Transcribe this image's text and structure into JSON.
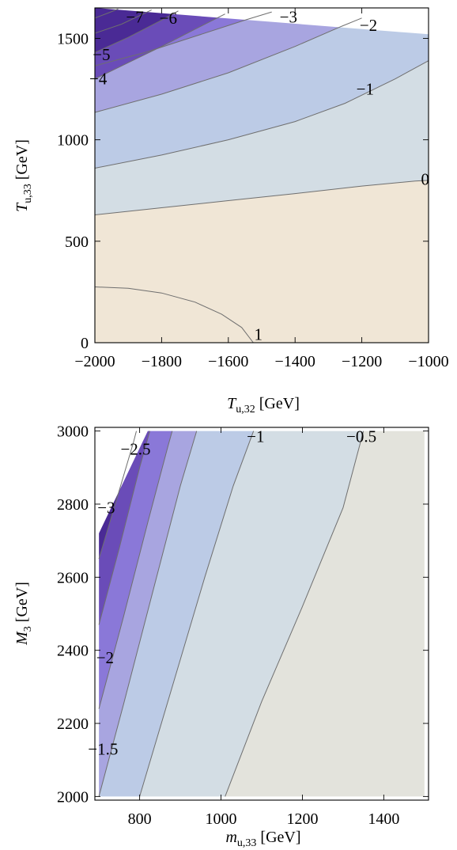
{
  "chart_data": [
    {
      "type": "contour",
      "xlabel": {
        "main": "T",
        "sub": "u,32",
        "unit": " [GeV]"
      },
      "ylabel": {
        "main": "T",
        "sub": "u,33",
        "unit": " [GeV]"
      },
      "xlim": [
        -2000,
        -1000
      ],
      "ylim": [
        0,
        1650
      ],
      "xticks": [
        -2000,
        -1800,
        -1600,
        -1400,
        -1200,
        -1000
      ],
      "xtick_labels": [
        "−2000",
        "−1800",
        "−1600",
        "−1400",
        "−1200",
        "−1000"
      ],
      "yticks": [
        0,
        500,
        1000,
        1500
      ],
      "ytick_labels": [
        "0",
        "500",
        "1000",
        "1500"
      ],
      "region_top_edge": [
        [
          -2000,
          1650
        ],
        [
          -1000,
          1520
        ]
      ],
      "contour_levels": [
        -7,
        -6,
        -5,
        -4,
        -3,
        -2,
        -1,
        0,
        1
      ],
      "contours": [
        {
          "level": 1,
          "label": "1",
          "label_at": [
            -1510,
            40
          ],
          "points": [
            [
              -2000,
              275
            ],
            [
              -1900,
              268
            ],
            [
              -1800,
              245
            ],
            [
              -1700,
              200
            ],
            [
              -1620,
              140
            ],
            [
              -1560,
              75
            ],
            [
              -1525,
              0
            ]
          ]
        },
        {
          "level": 0,
          "label": "0",
          "label_at": [
            -1010,
            805
          ],
          "points": [
            [
              -2000,
              630
            ],
            [
              -1800,
              665
            ],
            [
              -1600,
              700
            ],
            [
              -1400,
              735
            ],
            [
              -1200,
              772
            ],
            [
              -1040,
              797
            ],
            [
              -1000,
              800
            ]
          ]
        },
        {
          "level": -1,
          "label": "−1",
          "label_at": [
            -1190,
            1250
          ],
          "points": [
            [
              -2000,
              860
            ],
            [
              -1800,
              925
            ],
            [
              -1600,
              1000
            ],
            [
              -1400,
              1090
            ],
            [
              -1250,
              1180
            ],
            [
              -1100,
              1300
            ],
            [
              -1000,
              1390
            ]
          ]
        },
        {
          "level": -2,
          "label": "−2",
          "label_at": [
            -1180,
            1565
          ],
          "points": [
            [
              -2000,
              1135
            ],
            [
              -1800,
              1225
            ],
            [
              -1600,
              1330
            ],
            [
              -1400,
              1460
            ],
            [
              -1260,
              1560
            ],
            [
              -1200,
              1600
            ]
          ]
        },
        {
          "level": -3,
          "label": "−3",
          "label_at": [
            -1420,
            1605
          ],
          "points": [
            [
              -2000,
              1365
            ],
            [
              -1850,
              1430
            ],
            [
              -1700,
              1510
            ],
            [
              -1550,
              1590
            ],
            [
              -1470,
              1630
            ]
          ]
        },
        {
          "level": -4,
          "label": "−4",
          "label_at": [
            -1990,
            1300
          ],
          "points": [
            [
              -2000,
              1300
            ],
            [
              -1900,
              1380
            ],
            [
              -1800,
              1460
            ],
            [
              -1700,
              1545
            ],
            [
              -1610,
              1620
            ]
          ]
        },
        {
          "level": -5,
          "label": "−5",
          "label_at": [
            -1980,
            1420
          ],
          "points": [
            [
              -2000,
              1430
            ],
            [
              -1900,
              1505
            ],
            [
              -1800,
              1590
            ],
            [
              -1750,
              1635
            ]
          ]
        },
        {
          "level": -6,
          "label": "−6",
          "label_at": [
            -1780,
            1600
          ],
          "points": [
            [
              -2000,
              1525
            ],
            [
              -1920,
              1570
            ],
            [
              -1830,
              1640
            ]
          ]
        },
        {
          "level": -7,
          "label": "−7",
          "label_at": [
            -1880,
            1605
          ],
          "points": [
            [
              -2000,
              1600
            ],
            [
              -1960,
              1625
            ],
            [
              -1930,
              1645
            ]
          ]
        }
      ]
    },
    {
      "type": "contour",
      "xlabel": {
        "main": "m",
        "sub": "u,33",
        "unit": " [GeV]"
      },
      "ylabel": {
        "main": "M",
        "sub": "3",
        "unit": " [GeV]"
      },
      "xlim": [
        690,
        1510
      ],
      "ylim": [
        1990,
        3010
      ],
      "xticks": [
        800,
        1000,
        1200,
        1400
      ],
      "xtick_labels": [
        "800",
        "1000",
        "1200",
        "1400"
      ],
      "yticks": [
        2000,
        2200,
        2400,
        2600,
        2800,
        3000
      ],
      "ytick_labels": [
        "2000",
        "2200",
        "2400",
        "2600",
        "2800",
        "3000"
      ],
      "region_left_edge": [
        [
          700,
          2720
        ],
        [
          820,
          3000
        ]
      ],
      "contour_levels": [
        -3,
        -2.5,
        -2,
        -1.5,
        -1,
        -0.5
      ],
      "contours": [
        {
          "level": -0.5,
          "label": "−0.5",
          "label_at": [
            1345,
            2985
          ],
          "points": [
            [
              1010,
              2000
            ],
            [
              1100,
              2260
            ],
            [
              1200,
              2520
            ],
            [
              1300,
              2790
            ],
            [
              1350,
              3000
            ]
          ]
        },
        {
          "level": -1,
          "label": "−1",
          "label_at": [
            1085,
            2985
          ],
          "points": [
            [
              800,
              2000
            ],
            [
              880,
              2300
            ],
            [
              960,
              2600
            ],
            [
              1030,
              2850
            ],
            [
              1080,
              3000
            ]
          ]
        },
        {
          "level": -1.5,
          "label": "−1.5",
          "label_at": [
            710,
            2130
          ],
          "points": [
            [
              700,
              2000
            ],
            [
              760,
              2250
            ],
            [
              830,
              2550
            ],
            [
              900,
              2850
            ],
            [
              940,
              3000
            ]
          ]
        },
        {
          "level": -2,
          "label": "−2",
          "label_at": [
            715,
            2380
          ],
          "points": [
            [
              700,
              2240
            ],
            [
              760,
              2490
            ],
            [
              820,
              2750
            ],
            [
              870,
              2960
            ],
            [
              880,
              3000
            ]
          ]
        },
        {
          "level": -2.5,
          "label": "−2.5",
          "label_at": [
            790,
            2950
          ],
          "points": [
            [
              700,
              2470
            ],
            [
              750,
              2680
            ],
            [
              800,
              2900
            ],
            [
              825,
              3000
            ]
          ]
        },
        {
          "level": -3,
          "label": "−3",
          "label_at": [
            718,
            2790
          ],
          "points": [
            [
              700,
              2650
            ],
            [
              740,
              2800
            ],
            [
              785,
              2970
            ],
            [
              792,
              3000
            ]
          ]
        }
      ]
    }
  ],
  "colors": {
    "level_fills": [
      "#4a2a95",
      "#6a4cb8",
      "#8a78d8",
      "#a8a5e0",
      "#bccbe6",
      "#d3dde4",
      "#e3e3dc",
      "#f0e6d6"
    ],
    "contour_line": "#6f6f6f"
  }
}
